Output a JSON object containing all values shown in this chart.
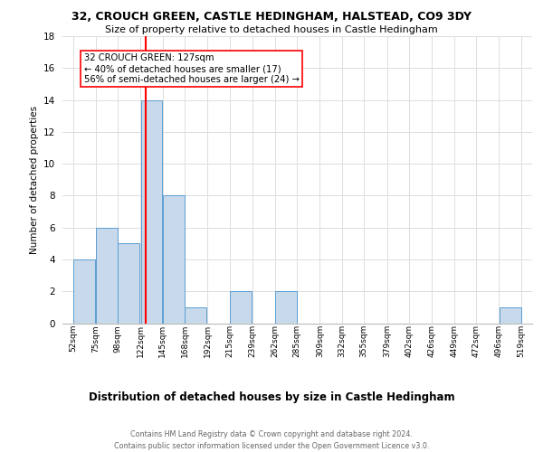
{
  "title1": "32, CROUCH GREEN, CASTLE HEDINGHAM, HALSTEAD, CO9 3DY",
  "title2": "Size of property relative to detached houses in Castle Hedingham",
  "xlabel": "Distribution of detached houses by size in Castle Hedingham",
  "ylabel": "Number of detached properties",
  "footer1": "Contains HM Land Registry data © Crown copyright and database right 2024.",
  "footer2": "Contains public sector information licensed under the Open Government Licence v3.0.",
  "bin_labels": [
    "52sqm",
    "75sqm",
    "98sqm",
    "122sqm",
    "145sqm",
    "168sqm",
    "192sqm",
    "215sqm",
    "239sqm",
    "262sqm",
    "285sqm",
    "309sqm",
    "332sqm",
    "355sqm",
    "379sqm",
    "402sqm",
    "426sqm",
    "449sqm",
    "472sqm",
    "496sqm",
    "519sqm"
  ],
  "bar_values": [
    4,
    6,
    5,
    14,
    8,
    1,
    0,
    2,
    0,
    2,
    0,
    0,
    0,
    0,
    0,
    0,
    0,
    0,
    0,
    1,
    0
  ],
  "bar_color": "#c8d9eb",
  "bar_edge_color": "#5a9fd4",
  "property_line_x": 127,
  "annotation_text": "32 CROUCH GREEN: 127sqm\n← 40% of detached houses are smaller (17)\n56% of semi-detached houses are larger (24) →",
  "annotation_box_color": "white",
  "annotation_box_edge_color": "red",
  "vline_color": "red",
  "ylim": [
    0,
    18
  ],
  "yticks": [
    0,
    2,
    4,
    6,
    8,
    10,
    12,
    14,
    16,
    18
  ],
  "bin_edges": [
    52,
    75,
    98,
    122,
    145,
    168,
    192,
    215,
    239,
    262,
    285,
    309,
    332,
    355,
    379,
    402,
    426,
    449,
    472,
    496,
    519
  ],
  "background_color": "#ffffff",
  "grid_color": "#dddddd",
  "title1_fontsize": 9.0,
  "title2_fontsize": 8.0,
  "ylabel_fontsize": 7.5,
  "xlabel_fontsize": 8.5,
  "footer_fontsize": 5.8,
  "tick_fontsize": 6.5,
  "ytick_fontsize": 7.5,
  "annot_fontsize": 7.2
}
